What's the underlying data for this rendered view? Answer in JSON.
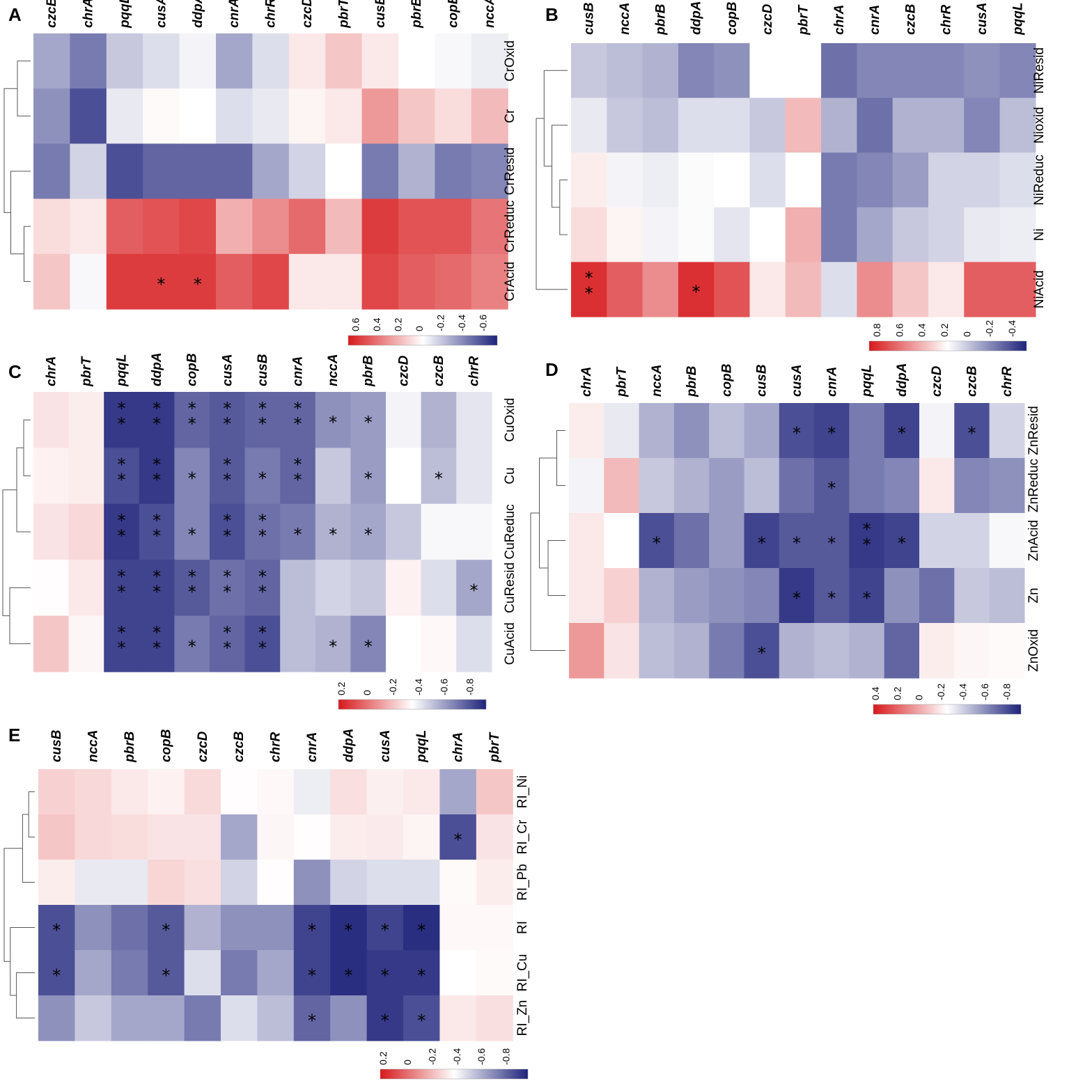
{
  "colors": {
    "low": "#1e237a",
    "mid": "#ffffff",
    "high": "#d7191c"
  },
  "chart_data": [
    {
      "type": "heatmap",
      "panel": "A",
      "columns": [
        "czcB",
        "chrA",
        "pqqL",
        "cusA",
        "ddpA",
        "cnrA",
        "chrR",
        "czcD",
        "pbrT",
        "cusB",
        "pbrB",
        "copB",
        "nccA"
      ],
      "rows": [
        "CrOxid",
        "Cr",
        "CrResid",
        "CrReduc",
        "CrAcid"
      ],
      "values": [
        [
          -0.4,
          -0.6,
          -0.25,
          -0.15,
          -0.05,
          -0.4,
          -0.15,
          0.1,
          0.25,
          0.1,
          0.0,
          -0.03,
          -0.08
        ],
        [
          -0.5,
          -0.8,
          -0.1,
          0.02,
          0.0,
          -0.15,
          -0.1,
          0.05,
          0.1,
          0.45,
          0.25,
          0.15,
          0.3
        ],
        [
          -0.6,
          -0.2,
          -0.8,
          -0.7,
          -0.7,
          -0.7,
          -0.4,
          -0.2,
          0.0,
          -0.6,
          -0.35,
          -0.6,
          -0.55
        ],
        [
          0.15,
          0.1,
          0.7,
          0.75,
          0.8,
          0.35,
          0.5,
          0.65,
          0.3,
          0.85,
          0.75,
          0.75,
          0.6
        ],
        [
          0.25,
          -0.03,
          0.85,
          0.85,
          0.85,
          0.7,
          0.8,
          0.1,
          0.1,
          0.8,
          0.7,
          0.65,
          0.55
        ]
      ],
      "stars": [
        [],
        [],
        [],
        [],
        [
          null,
          null,
          null,
          "*",
          "*"
        ]
      ],
      "legend_ticks": [
        "0.6",
        "0.4",
        "0.2",
        "0",
        "-0.2",
        "-0.4",
        "-0.6"
      ],
      "value_range": [
        0.7,
        -0.7
      ]
    },
    {
      "type": "heatmap",
      "panel": "B",
      "columns": [
        "cusB",
        "nccA",
        "pbrB",
        "ddpA",
        "copB",
        "czcD",
        "pbrT",
        "chrA",
        "cnrA",
        "czcB",
        "chrR",
        "cusA",
        "pqqL"
      ],
      "rows": [
        "NiResid",
        "Nioxid",
        "NiReduc",
        "Ni",
        "NiAcid"
      ],
      "values": [
        [
          -0.25,
          -0.3,
          -0.35,
          -0.55,
          -0.5,
          0.0,
          0.0,
          -0.65,
          -0.55,
          -0.55,
          -0.55,
          -0.5,
          -0.55
        ],
        [
          -0.1,
          -0.25,
          -0.3,
          -0.15,
          -0.15,
          -0.25,
          0.3,
          -0.35,
          -0.65,
          -0.35,
          -0.35,
          -0.55,
          -0.3
        ],
        [
          0.08,
          -0.05,
          -0.08,
          -0.02,
          0.0,
          -0.15,
          0.0,
          -0.6,
          -0.55,
          -0.45,
          -0.2,
          -0.2,
          -0.15
        ],
        [
          0.15,
          0.05,
          -0.05,
          -0.02,
          -0.12,
          0.0,
          0.35,
          -0.6,
          -0.4,
          -0.25,
          -0.2,
          -0.1,
          -0.08
        ],
        [
          0.9,
          0.7,
          0.5,
          0.9,
          0.75,
          0.1,
          0.3,
          -0.15,
          0.5,
          0.25,
          0.1,
          0.7,
          0.7
        ]
      ],
      "stars": [
        [],
        [],
        [],
        [],
        [
          "**",
          null,
          null,
          "*"
        ]
      ],
      "legend_ticks": [
        "0.8",
        "0.6",
        "0.4",
        "0.2",
        "0",
        "-0.2",
        "-0.4"
      ],
      "value_range": [
        0.9,
        -0.5
      ]
    },
    {
      "type": "heatmap",
      "panel": "C",
      "columns": [
        "chrA",
        "pbrT",
        "pqqL",
        "ddpA",
        "copB",
        "cusA",
        "cusB",
        "cnrA",
        "nccA",
        "pbrB",
        "czcD",
        "czcB",
        "chrR"
      ],
      "rows": [
        "CuOxid",
        "Cu",
        "CuReduc",
        "CuResid",
        "CuAcid"
      ],
      "values": [
        [
          0.12,
          0.08,
          -0.9,
          -0.9,
          -0.7,
          -0.75,
          -0.7,
          -0.7,
          -0.5,
          -0.45,
          -0.05,
          -0.35,
          -0.12
        ],
        [
          0.06,
          0.08,
          -0.8,
          -0.9,
          -0.55,
          -0.75,
          -0.6,
          -0.7,
          -0.25,
          -0.45,
          0.0,
          -0.3,
          -0.12
        ],
        [
          0.12,
          0.17,
          -0.9,
          -0.8,
          -0.55,
          -0.8,
          -0.65,
          -0.6,
          -0.35,
          -0.4,
          -0.25,
          -0.03,
          -0.03
        ],
        [
          0.01,
          0.1,
          -0.85,
          -0.85,
          -0.75,
          -0.65,
          -0.7,
          -0.3,
          -0.2,
          -0.25,
          0.06,
          -0.15,
          -0.4
        ],
        [
          0.25,
          0.04,
          -0.85,
          -0.85,
          -0.6,
          -0.7,
          -0.8,
          -0.3,
          -0.35,
          -0.55,
          0.0,
          0.03,
          -0.15
        ]
      ],
      "stars": [
        [
          null,
          null,
          "**",
          "**",
          "**",
          "**",
          "**",
          "**",
          "*",
          "*"
        ],
        [
          null,
          null,
          "**",
          "**",
          "*",
          "**",
          "*",
          "**",
          null,
          "*",
          null,
          "*"
        ],
        [
          null,
          null,
          "**",
          "**",
          "*",
          "**",
          "**",
          "*",
          "*",
          "*"
        ],
        [
          null,
          null,
          "**",
          "**",
          "**",
          "**",
          "**",
          null,
          null,
          null,
          null,
          null,
          "*"
        ],
        [
          null,
          null,
          "**",
          "**",
          "*",
          "**",
          "**",
          null,
          "*",
          "*"
        ]
      ],
      "legend_ticks": [
        "0.2",
        "0",
        "-0.2",
        "-0.4",
        "-0.6",
        "-0.8"
      ],
      "value_range": [
        0.25,
        -0.9
      ]
    },
    {
      "type": "heatmap",
      "panel": "D",
      "columns": [
        "chrA",
        "pbrT",
        "nccA",
        "pbrB",
        "copB",
        "cusB",
        "cusA",
        "cnrA",
        "pqqL",
        "ddpA",
        "czcD",
        "czcB",
        "chrR"
      ],
      "rows": [
        "ZnResid",
        "ZnReduc",
        "ZnAcid",
        "Zn",
        "ZnOxid"
      ],
      "values": [
        [
          0.08,
          -0.1,
          -0.35,
          -0.5,
          -0.3,
          -0.4,
          -0.8,
          -0.85,
          -0.6,
          -0.85,
          -0.05,
          -0.8,
          -0.2
        ],
        [
          -0.05,
          0.3,
          -0.25,
          -0.35,
          -0.45,
          -0.3,
          -0.65,
          -0.75,
          -0.6,
          -0.55,
          0.1,
          -0.55,
          -0.5
        ],
        [
          0.1,
          0.0,
          -0.8,
          -0.65,
          -0.45,
          -0.85,
          -0.75,
          -0.75,
          -0.9,
          -0.85,
          -0.2,
          -0.2,
          -0.03
        ],
        [
          0.1,
          0.2,
          -0.35,
          -0.45,
          -0.5,
          -0.55,
          -0.9,
          -0.75,
          -0.85,
          -0.5,
          -0.65,
          -0.25,
          -0.3
        ],
        [
          0.45,
          0.12,
          -0.3,
          -0.35,
          -0.6,
          -0.8,
          -0.35,
          -0.3,
          -0.35,
          -0.7,
          0.08,
          0.04,
          0.02
        ]
      ],
      "stars": [
        [
          null,
          null,
          null,
          null,
          null,
          null,
          "*",
          "*",
          null,
          "*",
          null,
          "*"
        ],
        [
          null,
          null,
          null,
          null,
          null,
          null,
          null,
          "*"
        ],
        [
          null,
          null,
          "*",
          null,
          null,
          "*",
          "*",
          "*",
          "**",
          "*"
        ],
        [
          null,
          null,
          null,
          null,
          null,
          null,
          "*",
          "*",
          "*"
        ],
        [
          null,
          null,
          null,
          null,
          null,
          "*"
        ]
      ],
      "legend_ticks": [
        "0.4",
        "0.2",
        "0",
        "-0.2",
        "-0.4",
        "-0.6",
        "-0.8"
      ],
      "value_range": [
        0.45,
        -0.9
      ]
    },
    {
      "type": "heatmap",
      "panel": "E",
      "columns": [
        "cusB",
        "nccA",
        "pbrB",
        "copB",
        "czcD",
        "czcB",
        "chrR",
        "cnrA",
        "ddpA",
        "cusA",
        "pqqL",
        "chrA",
        "pbrT"
      ],
      "rows": [
        "RI_Ni",
        "RI_Cr",
        "RI_Pb",
        "RI",
        "RI_Cu",
        "RI_Zn"
      ],
      "values": [
        [
          0.2,
          0.17,
          0.1,
          0.06,
          0.16,
          0.01,
          0.03,
          -0.08,
          0.14,
          0.07,
          0.1,
          -0.4,
          0.25
        ],
        [
          0.25,
          0.17,
          0.15,
          0.12,
          0.12,
          -0.4,
          0.04,
          0.01,
          0.08,
          0.09,
          0.05,
          -0.8,
          0.12
        ],
        [
          0.08,
          -0.1,
          -0.1,
          0.18,
          0.14,
          -0.2,
          0.01,
          -0.5,
          -0.2,
          -0.15,
          -0.15,
          0.02,
          0.08
        ],
        [
          -0.8,
          -0.5,
          -0.65,
          -0.75,
          -0.35,
          -0.5,
          -0.5,
          -0.85,
          -0.95,
          -0.85,
          -0.95,
          0.03,
          0.03
        ],
        [
          -0.8,
          -0.4,
          -0.6,
          -0.75,
          -0.15,
          -0.6,
          -0.4,
          -0.85,
          -0.95,
          -0.9,
          -0.9,
          0.0,
          0.02
        ],
        [
          -0.5,
          -0.25,
          -0.4,
          -0.4,
          -0.6,
          -0.15,
          -0.3,
          -0.7,
          -0.5,
          -0.9,
          -0.8,
          0.1,
          0.14
        ]
      ],
      "stars": [
        [],
        [
          null,
          null,
          null,
          null,
          null,
          null,
          null,
          null,
          null,
          null,
          null,
          "*"
        ],
        [],
        [
          "*",
          null,
          null,
          "*",
          null,
          null,
          null,
          "*",
          "*",
          "*",
          "*"
        ],
        [
          "*",
          null,
          null,
          "*",
          null,
          null,
          null,
          "*",
          "*",
          "*",
          "*"
        ],
        [
          null,
          null,
          null,
          null,
          null,
          null,
          null,
          "*",
          null,
          "*",
          "*"
        ]
      ],
      "legend_ticks": [
        "0.2",
        "0",
        "-0.2",
        "-0.4",
        "-0.6",
        "-0.8"
      ],
      "value_range": [
        0.25,
        -0.95
      ]
    }
  ]
}
